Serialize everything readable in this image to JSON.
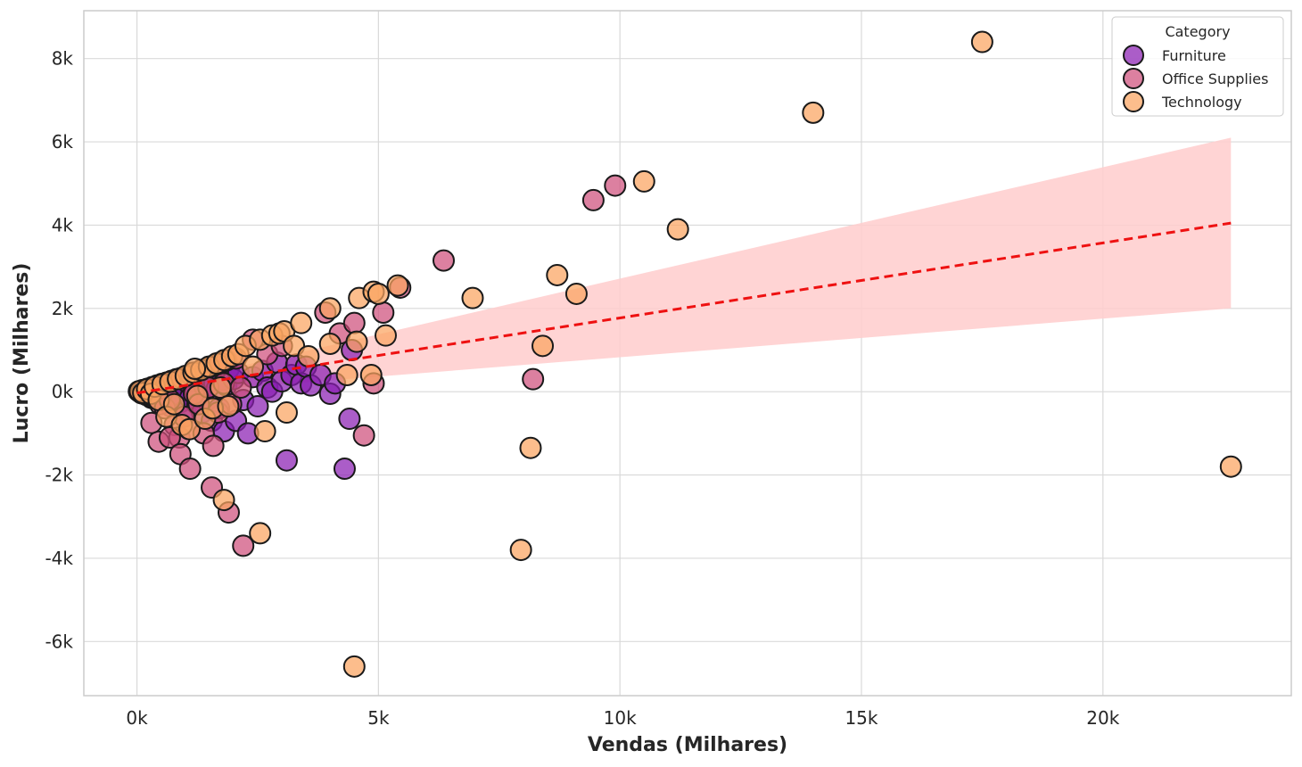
{
  "chart_data": {
    "type": "scatter",
    "title": "",
    "xlabel": "Vendas (Milhares)",
    "ylabel": "Lucro (Milhares)",
    "xlim": [
      -1100,
      23900
    ],
    "ylim": [
      -7300,
      9150
    ],
    "x_ticks": [
      0,
      5000,
      10000,
      15000,
      20000
    ],
    "x_tick_labels": [
      "0k",
      "5k",
      "10k",
      "15k",
      "20k"
    ],
    "y_ticks": [
      -6000,
      -4000,
      -2000,
      0,
      2000,
      4000,
      6000,
      8000
    ],
    "y_tick_labels": [
      "-6k",
      "-4k",
      "-2k",
      "0k",
      "2k",
      "4k",
      "6k",
      "8k"
    ],
    "grid": true,
    "legend": {
      "title": "Category",
      "placement": "top-right"
    },
    "series": [
      {
        "name": "Furniture",
        "color": "#8a1fb3",
        "points": [
          [
            50,
            5
          ],
          [
            100,
            -40
          ],
          [
            150,
            20
          ],
          [
            200,
            -80
          ],
          [
            250,
            50
          ],
          [
            300,
            -150
          ],
          [
            350,
            90
          ],
          [
            400,
            -30
          ],
          [
            450,
            120
          ],
          [
            500,
            -200
          ],
          [
            550,
            60
          ],
          [
            600,
            -100
          ],
          [
            650,
            150
          ],
          [
            700,
            -350
          ],
          [
            750,
            80
          ],
          [
            800,
            -50
          ],
          [
            850,
            200
          ],
          [
            900,
            -250
          ],
          [
            950,
            100
          ],
          [
            1000,
            -450
          ],
          [
            1050,
            220
          ],
          [
            1100,
            -150
          ],
          [
            1150,
            260
          ],
          [
            1200,
            40
          ],
          [
            1250,
            -300
          ],
          [
            1300,
            300
          ],
          [
            1350,
            -500
          ],
          [
            1400,
            120
          ],
          [
            1450,
            -200
          ],
          [
            1500,
            350
          ],
          [
            1550,
            -700
          ],
          [
            1600,
            200
          ],
          [
            1650,
            60
          ],
          [
            1700,
            -400
          ],
          [
            1750,
            280
          ],
          [
            1800,
            -950
          ],
          [
            1850,
            150
          ],
          [
            1900,
            550
          ],
          [
            2000,
            300
          ],
          [
            2050,
            -700
          ],
          [
            2100,
            450
          ],
          [
            2200,
            -200
          ],
          [
            2300,
            -1000
          ],
          [
            2400,
            350
          ],
          [
            2500,
            -350
          ],
          [
            2600,
            500
          ],
          [
            2700,
            100
          ],
          [
            2800,
            0
          ],
          [
            2900,
            700
          ],
          [
            3000,
            250
          ],
          [
            3100,
            -1650
          ],
          [
            3200,
            400
          ],
          [
            3300,
            650
          ],
          [
            3400,
            200
          ],
          [
            3500,
            600
          ],
          [
            3600,
            150
          ],
          [
            3800,
            400
          ],
          [
            4000,
            -50
          ],
          [
            4100,
            200
          ],
          [
            4300,
            -1850
          ],
          [
            4400,
            -650
          ],
          [
            4450,
            1000
          ]
        ]
      },
      {
        "name": "Office Supplies",
        "color": "#cf4f7c",
        "points": [
          [
            40,
            10
          ],
          [
            80,
            -20
          ],
          [
            120,
            40
          ],
          [
            180,
            -60
          ],
          [
            220,
            70
          ],
          [
            280,
            -100
          ],
          [
            320,
            110
          ],
          [
            380,
            -150
          ],
          [
            420,
            150
          ],
          [
            480,
            -300
          ],
          [
            520,
            190
          ],
          [
            580,
            -400
          ],
          [
            620,
            220
          ],
          [
            680,
            -200
          ],
          [
            720,
            260
          ],
          [
            780,
            -800
          ],
          [
            820,
            300
          ],
          [
            880,
            -1100
          ],
          [
            920,
            330
          ],
          [
            980,
            -600
          ],
          [
            1020,
            360
          ],
          [
            1080,
            -900
          ],
          [
            1120,
            400
          ],
          [
            1180,
            -50
          ],
          [
            1220,
            450
          ],
          [
            1280,
            -300
          ],
          [
            1320,
            500
          ],
          [
            1380,
            -1000
          ],
          [
            1420,
            550
          ],
          [
            1480,
            100
          ],
          [
            1520,
            600
          ],
          [
            1580,
            -1300
          ],
          [
            1620,
            650
          ],
          [
            1680,
            -500
          ],
          [
            1720,
            700
          ],
          [
            1800,
            200
          ],
          [
            1850,
            750
          ],
          [
            1950,
            -300
          ],
          [
            2050,
            800
          ],
          [
            2150,
            100
          ],
          [
            2400,
            1250
          ],
          [
            2700,
            900
          ],
          [
            3000,
            1100
          ],
          [
            450,
            -1200
          ],
          [
            680,
            -1100
          ],
          [
            900,
            -1500
          ],
          [
            1100,
            -1850
          ],
          [
            1550,
            -2300
          ],
          [
            1900,
            -2900
          ],
          [
            2200,
            -3700
          ],
          [
            3900,
            1900
          ],
          [
            4200,
            1400
          ],
          [
            4500,
            1650
          ],
          [
            4700,
            -1050
          ],
          [
            4900,
            200
          ],
          [
            5100,
            1900
          ],
          [
            5450,
            2500
          ],
          [
            6350,
            3150
          ],
          [
            8200,
            300
          ],
          [
            9450,
            4600
          ],
          [
            9900,
            4950
          ],
          [
            300,
            -750
          ]
        ]
      },
      {
        "name": "Technology",
        "color": "#fba35f",
        "points": [
          [
            60,
            15
          ],
          [
            130,
            -30
          ],
          [
            210,
            60
          ],
          [
            290,
            -50
          ],
          [
            370,
            120
          ],
          [
            450,
            -200
          ],
          [
            530,
            180
          ],
          [
            610,
            -600
          ],
          [
            690,
            240
          ],
          [
            770,
            -300
          ],
          [
            850,
            300
          ],
          [
            930,
            -800
          ],
          [
            1010,
            380
          ],
          [
            1090,
            -900
          ],
          [
            1170,
            460
          ],
          [
            1250,
            -100
          ],
          [
            1330,
            520
          ],
          [
            1410,
            -650
          ],
          [
            1490,
            600
          ],
          [
            1570,
            -400
          ],
          [
            1650,
            680
          ],
          [
            1730,
            100
          ],
          [
            1810,
            760
          ],
          [
            1890,
            -350
          ],
          [
            1970,
            850
          ],
          [
            2100,
            900
          ],
          [
            2250,
            1100
          ],
          [
            2400,
            600
          ],
          [
            2550,
            1250
          ],
          [
            2650,
            -950
          ],
          [
            2800,
            1350
          ],
          [
            2950,
            1400
          ],
          [
            3050,
            1450
          ],
          [
            3100,
            -500
          ],
          [
            3250,
            1100
          ],
          [
            3400,
            1650
          ],
          [
            3550,
            850
          ],
          [
            4000,
            2000
          ],
          [
            4000,
            1150
          ],
          [
            4350,
            400
          ],
          [
            4550,
            1200
          ],
          [
            4600,
            2250
          ],
          [
            4850,
            400
          ],
          [
            4900,
            2400
          ],
          [
            5000,
            2350
          ],
          [
            5150,
            1350
          ],
          [
            5400,
            2550
          ],
          [
            6950,
            2250
          ],
          [
            1800,
            -2600
          ],
          [
            2550,
            -3400
          ],
          [
            4500,
            -6600
          ],
          [
            7950,
            -3800
          ],
          [
            8150,
            -1350
          ],
          [
            8400,
            1100
          ],
          [
            8700,
            2800
          ],
          [
            9100,
            2350
          ],
          [
            10500,
            5050
          ],
          [
            11200,
            3900
          ],
          [
            14000,
            6700
          ],
          [
            17500,
            8400
          ],
          [
            22650,
            -1800
          ],
          [
            1200,
            550
          ]
        ]
      }
    ],
    "regression": {
      "style": "dashed",
      "color": "#ee1111",
      "band_color": "#ffcccc",
      "x_range": [
        0,
        22650
      ],
      "line": [
        [
          0,
          -30
        ],
        [
          22650,
          4050
        ]
      ],
      "ci_upper": [
        [
          0,
          40
        ],
        [
          22650,
          6100
        ]
      ],
      "ci_lower": [
        [
          0,
          -100
        ],
        [
          22650,
          2000
        ]
      ]
    }
  }
}
